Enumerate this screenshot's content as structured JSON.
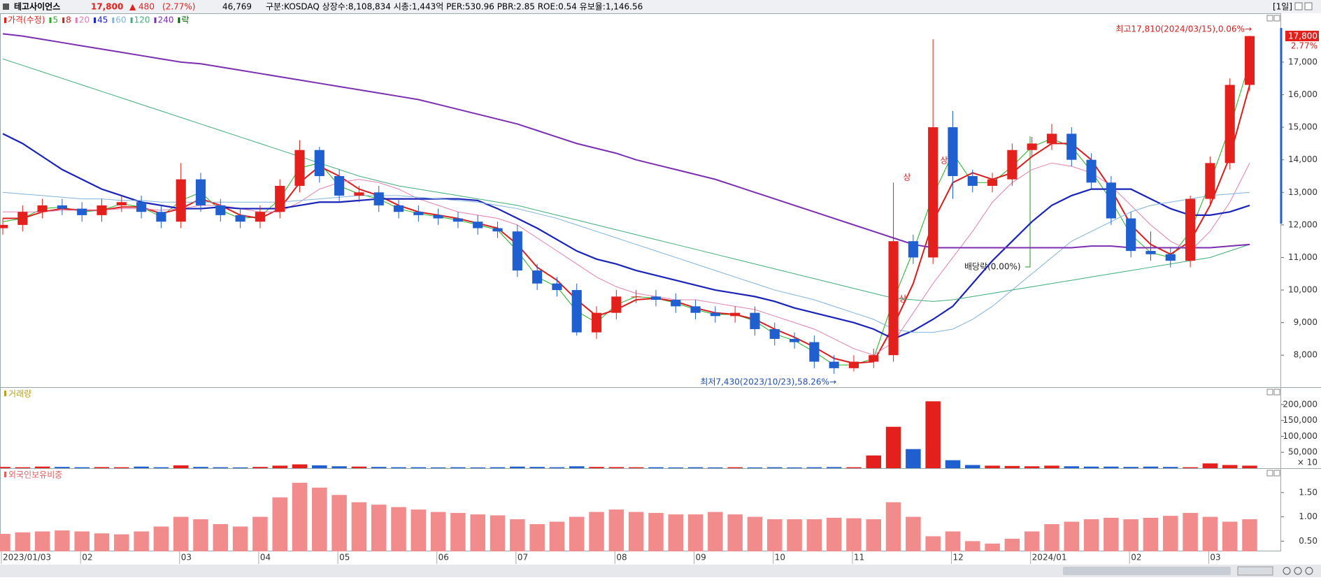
{
  "header": {
    "name": "테고사이언스",
    "price": "17,800",
    "change": "▲ 480",
    "change_pct": "(2.77%)",
    "volume": "46,769",
    "info": "구분:KOSDAQ 상장수:8,108,834 시총:1,443억 PER:530.96 PBR:2.85 ROE:0.54 유보율:1,146.56",
    "period": "[1일]"
  },
  "chart_data": [
    {
      "type": "candlestick",
      "categories": [
        "2023/01/03",
        null,
        null,
        null,
        "02",
        null,
        null,
        null,
        null,
        "03",
        null,
        null,
        null,
        "04",
        null,
        null,
        null,
        "05",
        null,
        null,
        null,
        null,
        "06",
        null,
        null,
        null,
        "07",
        null,
        null,
        null,
        null,
        "08",
        null,
        null,
        null,
        "09",
        null,
        null,
        null,
        "10",
        null,
        null,
        null,
        "11",
        null,
        null,
        null,
        null,
        "12",
        null,
        null,
        null,
        "2024/01",
        null,
        null,
        null,
        null,
        "02",
        null,
        null,
        null,
        "03",
        null,
        null
      ],
      "candles": {
        "name": "가격(수정)",
        "color_up": "#e3201b",
        "color_down": "#1f5fd0",
        "open": [
          11900,
          12000,
          12400,
          12600,
          12500,
          12300,
          12600,
          12700,
          12400,
          12100,
          13400,
          12600,
          12300,
          12100,
          12400,
          13200,
          14300,
          13500,
          12900,
          13000,
          12600,
          12400,
          12300,
          12200,
          12100,
          11900,
          11800,
          10600,
          10200,
          10000,
          8700,
          9300,
          9800,
          9800,
          9700,
          9500,
          9300,
          9200,
          9300,
          8800,
          8500,
          8400,
          7800,
          7600,
          7800,
          8000,
          11500,
          11000,
          15000,
          13500,
          13200,
          13400,
          14300,
          14500,
          14800,
          14000,
          13300,
          12200,
          11200,
          11100,
          10900,
          12800,
          13900,
          16300
        ],
        "high": [
          12200,
          12600,
          12800,
          12800,
          12700,
          12800,
          12900,
          12900,
          12600,
          13900,
          13600,
          12800,
          12500,
          12600,
          13400,
          14600,
          14400,
          13700,
          13200,
          13200,
          12800,
          12600,
          12500,
          12400,
          12300,
          12100,
          12000,
          10800,
          10400,
          10200,
          9500,
          10000,
          10000,
          10000,
          9900,
          9700,
          9500,
          9500,
          9500,
          9000,
          8700,
          8600,
          8000,
          8000,
          8200,
          13300,
          11700,
          17700,
          15500,
          13700,
          13600,
          14500,
          14700,
          15100,
          15000,
          14200,
          13500,
          12400,
          11800,
          11300,
          12900,
          14100,
          16500,
          17810
        ],
        "low": [
          11700,
          11800,
          12200,
          12300,
          12100,
          12100,
          12400,
          12200,
          11900,
          11900,
          12400,
          12100,
          11900,
          11900,
          12200,
          13000,
          13300,
          12700,
          12700,
          12400,
          12200,
          12100,
          12000,
          11900,
          11700,
          11600,
          10400,
          10000,
          9800,
          8600,
          8500,
          9100,
          9600,
          9500,
          9300,
          9100,
          9000,
          9000,
          8600,
          8300,
          8200,
          7600,
          7430,
          7500,
          7600,
          7800,
          10800,
          10800,
          12800,
          13000,
          13000,
          13200,
          14100,
          14300,
          13800,
          13100,
          12000,
          11000,
          10900,
          10700,
          10700,
          12600,
          13700,
          16100
        ],
        "close": [
          12000,
          12400,
          12600,
          12500,
          12300,
          12600,
          12700,
          12400,
          12100,
          13400,
          12600,
          12300,
          12100,
          12400,
          13200,
          14300,
          13500,
          12900,
          13000,
          12600,
          12400,
          12300,
          12200,
          12100,
          11900,
          11800,
          10600,
          10200,
          10000,
          8700,
          9300,
          9800,
          9800,
          9700,
          9500,
          9300,
          9200,
          9300,
          8800,
          8500,
          8400,
          7800,
          7600,
          7800,
          8000,
          11500,
          11000,
          15000,
          13500,
          13200,
          13400,
          14300,
          14500,
          14800,
          14000,
          13300,
          12200,
          11200,
          11100,
          10900,
          12800,
          13900,
          16300,
          17800
        ]
      },
      "series": [
        {
          "name": "5",
          "color": "#22b022",
          "width": 1,
          "values": [
            12100,
            12200,
            12500,
            12550,
            12400,
            12450,
            12650,
            12550,
            12250,
            12750,
            13000,
            12450,
            12200,
            12250,
            12800,
            13750,
            13900,
            13200,
            12950,
            12800,
            12500,
            12350,
            12250,
            12150,
            12000,
            11850,
            11200,
            10400,
            10100,
            9350,
            9000,
            9550,
            9800,
            9750,
            9600,
            9400,
            9250,
            9250,
            9050,
            8650,
            8450,
            8100,
            7700,
            7700,
            7900,
            9700,
            11200,
            12900,
            14200,
            13300,
            13300,
            13800,
            14400,
            14650,
            14400,
            13650,
            12750,
            11700,
            11150,
            11000,
            11800,
            13300,
            15000,
            17000
          ]
        },
        {
          "name": "8",
          "color": "#d91e1e",
          "width": 2,
          "values": [
            12200,
            12200,
            12400,
            12500,
            12450,
            12450,
            12550,
            12550,
            12350,
            12500,
            12800,
            12600,
            12300,
            12200,
            12500,
            13300,
            13800,
            13500,
            13100,
            12900,
            12600,
            12400,
            12300,
            12200,
            12050,
            11900,
            11400,
            10700,
            10300,
            9700,
            9200,
            9400,
            9700,
            9750,
            9650,
            9450,
            9300,
            9250,
            9100,
            8800,
            8550,
            8250,
            7900,
            7750,
            7800,
            8900,
            10200,
            12100,
            13300,
            13600,
            13400,
            13600,
            14100,
            14500,
            14500,
            14000,
            13100,
            12000,
            11400,
            11100,
            11500,
            12600,
            14100,
            16300
          ]
        },
        {
          "name": "20",
          "color": "#e27fb2",
          "width": 1,
          "values": [
            12400,
            12400,
            12400,
            12450,
            12450,
            12450,
            12500,
            12500,
            12450,
            12500,
            12600,
            12600,
            12500,
            12400,
            12400,
            12700,
            13100,
            13300,
            13400,
            13300,
            13100,
            12800,
            12600,
            12400,
            12300,
            12200,
            12000,
            11600,
            11200,
            10800,
            10400,
            10100,
            9900,
            9800,
            9700,
            9700,
            9600,
            9500,
            9400,
            9200,
            9000,
            8800,
            8500,
            8200,
            8000,
            8400,
            9300,
            10200,
            11000,
            11800,
            12700,
            13300,
            13700,
            13900,
            13800,
            13600,
            13200,
            12600,
            12000,
            11500,
            11200,
            11800,
            12700,
            13900
          ]
        },
        {
          "name": "45",
          "color": "#1a23b8",
          "width": 2.2,
          "values": [
            14800,
            14500,
            14100,
            13700,
            13400,
            13100,
            12900,
            12700,
            12600,
            12500,
            12500,
            12550,
            12500,
            12500,
            12500,
            12600,
            12700,
            12700,
            12750,
            12800,
            12800,
            12800,
            12800,
            12800,
            12750,
            12500,
            12200,
            11900,
            11550,
            11200,
            10950,
            10800,
            10600,
            10450,
            10300,
            10150,
            10000,
            9900,
            9800,
            9650,
            9450,
            9300,
            9150,
            9000,
            8800,
            8500,
            8750,
            9100,
            9500,
            10200,
            10900,
            11500,
            12100,
            12600,
            12900,
            13100,
            13100,
            13100,
            12800,
            12500,
            12300,
            12300,
            12400,
            12600
          ]
        },
        {
          "name": "60",
          "color": "#7fb3dc",
          "width": 1,
          "values": [
            13000,
            12950,
            12900,
            12850,
            12800,
            12800,
            12750,
            12750,
            12700,
            12700,
            12700,
            12700,
            12700,
            12700,
            12700,
            12750,
            12800,
            12850,
            12900,
            12900,
            12900,
            12850,
            12800,
            12750,
            12700,
            12600,
            12500,
            12350,
            12200,
            12000,
            11800,
            11600,
            11400,
            11200,
            11000,
            10800,
            10600,
            10400,
            10200,
            10000,
            9850,
            9700,
            9500,
            9300,
            9100,
            8800,
            8700,
            8700,
            8800,
            9100,
            9500,
            10000,
            10500,
            11000,
            11500,
            11800,
            12100,
            12400,
            12600,
            12700,
            12800,
            12900,
            12950,
            13000
          ]
        },
        {
          "name": "120",
          "color": "#3fae78",
          "width": 1,
          "values": [
            17100,
            16900,
            16700,
            16500,
            16300,
            16100,
            15900,
            15700,
            15500,
            15300,
            15100,
            14900,
            14700,
            14500,
            14300,
            14100,
            13900,
            13700,
            13500,
            13350,
            13200,
            13100,
            13000,
            12900,
            12800,
            12700,
            12600,
            12450,
            12300,
            12150,
            12000,
            11850,
            11700,
            11550,
            11400,
            11250,
            11100,
            10950,
            10800,
            10650,
            10500,
            10350,
            10200,
            10050,
            9900,
            9750,
            9700,
            9650,
            9700,
            9800,
            9900,
            10000,
            10100,
            10200,
            10300,
            10400,
            10500,
            10600,
            10700,
            10800,
            10900,
            11000,
            11200,
            11400
          ]
        },
        {
          "name": "240",
          "color": "#7b2fb0",
          "width": 2,
          "values": [
            17870,
            17800,
            17700,
            17600,
            17500,
            17400,
            17300,
            17200,
            17100,
            17000,
            16950,
            16850,
            16750,
            16650,
            16550,
            16450,
            16350,
            16250,
            16150,
            16050,
            15950,
            15850,
            15700,
            15550,
            15400,
            15250,
            15100,
            14900,
            14700,
            14500,
            14350,
            14200,
            14000,
            13850,
            13700,
            13550,
            13400,
            13200,
            13000,
            12800,
            12600,
            12400,
            12200,
            12000,
            11800,
            11600,
            11400,
            11300,
            11300,
            11300,
            11300,
            11300,
            11300,
            11300,
            11300,
            11350,
            11350,
            11300,
            11300,
            11300,
            11300,
            11300,
            11350,
            11400
          ]
        }
      ],
      "legend_extra": {
        "name": "락",
        "color": "#006400"
      },
      "ylim": [
        7018,
        18500
      ],
      "yticks": [
        {
          "value": 8000,
          "label": "8,000"
        },
        {
          "value": 9000,
          "label": "9,000"
        },
        {
          "value": 10000,
          "label": "10,000"
        },
        {
          "value": 11000,
          "label": "11,000"
        },
        {
          "value": 12000,
          "label": "12,000"
        },
        {
          "value": 13000,
          "label": "13,000"
        },
        {
          "value": 14000,
          "label": "14,000"
        },
        {
          "value": 15000,
          "label": "15,000"
        },
        {
          "value": 16000,
          "label": "16,000"
        },
        {
          "value": 17000,
          "label": "17,000"
        }
      ],
      "grid": false,
      "annotations": {
        "high": "최고17,810(2024/03/15),0.06%→",
        "low": "최저7,430(2023/10/23),58.26%→",
        "ex_dividend": "배당락(0.00%)",
        "limit_up": [
          "상",
          "상",
          "상"
        ],
        "last_change": "2.77%"
      }
    },
    {
      "type": "bar",
      "title": "거래량",
      "title_color": "#b8a020",
      "values": [
        4000,
        3000,
        5000,
        4000,
        3000,
        3500,
        3000,
        5000,
        3000,
        9000,
        4000,
        3000,
        2500,
        4000,
        8000,
        12000,
        9000,
        6000,
        5000,
        4000,
        3000,
        3000,
        2500,
        3000,
        2500,
        3000,
        5000,
        4000,
        3000,
        6000,
        4000,
        3500,
        3000,
        3000,
        2500,
        3000,
        2500,
        3000,
        2500,
        3000,
        2500,
        3000,
        3500,
        3000,
        40000,
        130000,
        60000,
        210000,
        25000,
        10000,
        8000,
        7000,
        6000,
        8000,
        6000,
        5000,
        5000,
        4000,
        5000,
        4000,
        3000,
        15000,
        10000,
        8000
      ],
      "ylim": [
        0,
        254500
      ],
      "yticks": [
        {
          "value": 50000,
          "label": "50,000"
        },
        {
          "value": 100000,
          "label": "100,000"
        },
        {
          "value": 150000,
          "label": "150,000"
        },
        {
          "value": 200000,
          "label": "200,000"
        }
      ],
      "unit_label": "× 10",
      "grid": false
    },
    {
      "type": "bar",
      "title": "외국인보유비중",
      "title_color": "#e06060",
      "color": "#f28b8b",
      "values": [
        0.65,
        0.68,
        0.7,
        0.72,
        0.7,
        0.66,
        0.64,
        0.7,
        0.8,
        1.0,
        0.95,
        0.85,
        0.8,
        1.0,
        1.4,
        1.7,
        1.6,
        1.45,
        1.3,
        1.25,
        1.2,
        1.15,
        1.1,
        1.08,
        1.05,
        1.03,
        0.95,
        0.85,
        0.9,
        1.0,
        1.1,
        1.15,
        1.1,
        1.08,
        1.05,
        1.05,
        1.1,
        1.05,
        1.0,
        0.95,
        0.95,
        0.95,
        0.98,
        0.97,
        0.95,
        1.3,
        1.0,
        0.6,
        0.7,
        0.5,
        0.45,
        0.55,
        0.7,
        0.85,
        0.9,
        0.95,
        0.98,
        0.95,
        0.98,
        1.02,
        1.08,
        1.0,
        0.9,
        0.95
      ],
      "ylim": [
        0.29,
        2.0
      ],
      "yticks": [
        {
          "value": 0.5,
          "label": "0.50"
        },
        {
          "value": 1.0,
          "label": "1.00"
        },
        {
          "value": 1.5,
          "label": "1.50"
        }
      ],
      "grid": false
    }
  ]
}
